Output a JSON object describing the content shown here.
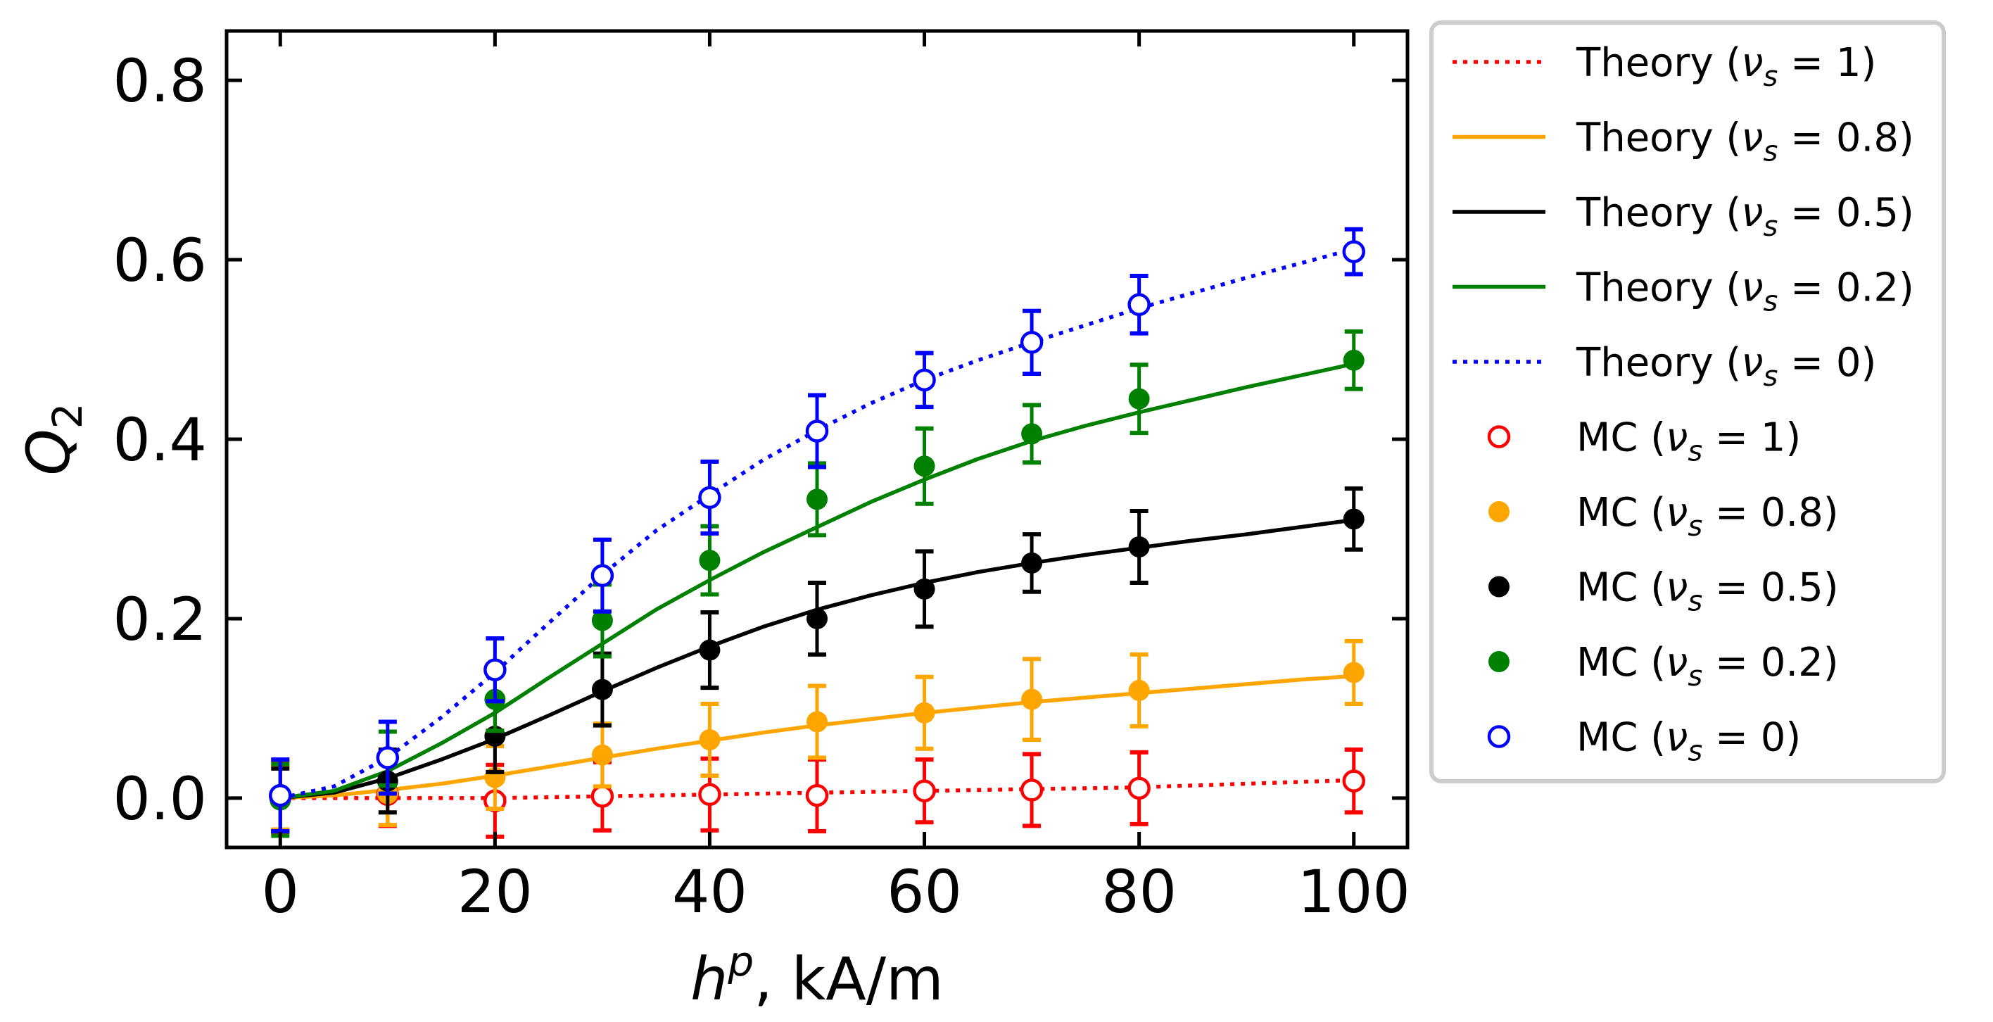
{
  "chart_data": {
    "type": "scatter",
    "xlabel": "h^p, kA/m",
    "xlabel_main": "h",
    "xlabel_sup": "p",
    "xlabel_rest": ", kA/m",
    "ylabel": "Q_2",
    "ylabel_main": "Q",
    "ylabel_sub": "2",
    "xlim": [
      -5,
      105
    ],
    "ylim": [
      -0.055,
      0.855
    ],
    "xticks": [
      0,
      20,
      40,
      60,
      80,
      100
    ],
    "xtick_labels": [
      "0",
      "20",
      "40",
      "60",
      "80",
      "100"
    ],
    "yticks": [
      0.0,
      0.2,
      0.4,
      0.6,
      0.8
    ],
    "ytick_labels": [
      "0.0",
      "0.2",
      "0.4",
      "0.6",
      "0.8"
    ],
    "grid": false,
    "legend_position": "outside-right",
    "theory_x": [
      0,
      5,
      10,
      15,
      20,
      25,
      30,
      35,
      40,
      45,
      50,
      55,
      60,
      65,
      70,
      75,
      80,
      85,
      90,
      95,
      100
    ],
    "theory": [
      {
        "name": "Theory (ν_s = 1)",
        "nu": "1",
        "color": "#ff0000",
        "style": "dotted",
        "y": [
          0.0,
          0.0,
          0.0,
          0.0,
          0.0,
          0.001,
          0.002,
          0.003,
          0.004,
          0.005,
          0.006,
          0.007,
          0.008,
          0.009,
          0.01,
          0.011,
          0.012,
          0.014,
          0.016,
          0.018,
          0.02
        ]
      },
      {
        "name": "Theory (ν_s = 0.8)",
        "nu": "0.8",
        "color": "#ffa500",
        "style": "solid",
        "y": [
          0.0,
          0.003,
          0.009,
          0.016,
          0.025,
          0.035,
          0.045,
          0.055,
          0.064,
          0.073,
          0.081,
          0.088,
          0.095,
          0.101,
          0.107,
          0.112,
          0.117,
          0.122,
          0.127,
          0.132,
          0.136
        ]
      },
      {
        "name": "Theory (ν_s = 0.5)",
        "nu": "0.5",
        "color": "#000000",
        "style": "solid",
        "y": [
          0.0,
          0.006,
          0.022,
          0.043,
          0.066,
          0.092,
          0.119,
          0.145,
          0.169,
          0.191,
          0.21,
          0.226,
          0.24,
          0.252,
          0.262,
          0.271,
          0.279,
          0.287,
          0.294,
          0.302,
          0.31
        ]
      },
      {
        "name": "Theory (ν_s = 0.2)",
        "nu": "0.2",
        "color": "#008000",
        "style": "solid",
        "y": [
          0.0,
          0.008,
          0.03,
          0.061,
          0.095,
          0.134,
          0.172,
          0.21,
          0.243,
          0.274,
          0.302,
          0.33,
          0.355,
          0.378,
          0.398,
          0.415,
          0.43,
          0.444,
          0.458,
          0.471,
          0.484
        ]
      },
      {
        "name": "Theory (ν_s = 0)",
        "nu": "0",
        "color": "#0000ff",
        "style": "dotted",
        "y": [
          0.0,
          0.013,
          0.045,
          0.09,
          0.14,
          0.195,
          0.249,
          0.298,
          0.338,
          0.377,
          0.41,
          0.44,
          0.466,
          0.488,
          0.508,
          0.527,
          0.546,
          0.563,
          0.58,
          0.596,
          0.612
        ]
      }
    ],
    "mc": [
      {
        "name": "MC (ν_s = 1)",
        "nu": "1",
        "color": "#ff0000",
        "filled": false,
        "x": [
          0,
          10,
          20,
          30,
          40,
          50,
          60,
          70,
          80,
          100
        ],
        "y": [
          0.002,
          0.004,
          -0.003,
          0.002,
          0.004,
          0.003,
          0.008,
          0.009,
          0.011,
          0.019
        ],
        "err": [
          0.04,
          0.035,
          0.04,
          0.038,
          0.04,
          0.04,
          0.035,
          0.04,
          0.04,
          0.035
        ]
      },
      {
        "name": "MC (ν_s = 0.8)",
        "nu": "0.8",
        "color": "#ffa500",
        "filled": true,
        "x": [
          0,
          10,
          20,
          30,
          40,
          50,
          60,
          70,
          80,
          100
        ],
        "y": [
          0.0,
          0.005,
          0.023,
          0.048,
          0.065,
          0.085,
          0.095,
          0.11,
          0.12,
          0.14
        ],
        "err": [
          0.035,
          0.035,
          0.035,
          0.035,
          0.04,
          0.04,
          0.04,
          0.045,
          0.04,
          0.035
        ]
      },
      {
        "name": "MC (ν_s = 0.5)",
        "nu": "0.5",
        "color": "#000000",
        "filled": true,
        "x": [
          0,
          10,
          20,
          30,
          40,
          50,
          60,
          70,
          80,
          100
        ],
        "y": [
          -0.002,
          0.019,
          0.069,
          0.121,
          0.165,
          0.2,
          0.233,
          0.262,
          0.28,
          0.311
        ],
        "err": [
          0.035,
          0.035,
          0.04,
          0.04,
          0.042,
          0.04,
          0.042,
          0.032,
          0.04,
          0.034
        ]
      },
      {
        "name": "MC (ν_s = 0.2)",
        "nu": "0.2",
        "color": "#008000",
        "filled": true,
        "x": [
          0,
          10,
          20,
          30,
          40,
          50,
          60,
          70,
          80,
          100
        ],
        "y": [
          -0.002,
          0.044,
          0.11,
          0.198,
          0.265,
          0.333,
          0.37,
          0.406,
          0.445,
          0.488
        ],
        "err": [
          0.04,
          0.03,
          0.035,
          0.04,
          0.038,
          0.04,
          0.042,
          0.032,
          0.038,
          0.032
        ]
      },
      {
        "name": "MC (ν_s = 0)",
        "nu": "0",
        "color": "#0000ff",
        "filled": false,
        "x": [
          0,
          10,
          20,
          30,
          40,
          50,
          60,
          70,
          80,
          100
        ],
        "y": [
          0.003,
          0.045,
          0.143,
          0.248,
          0.335,
          0.409,
          0.466,
          0.508,
          0.55,
          0.609
        ],
        "err": [
          0.04,
          0.04,
          0.035,
          0.04,
          0.04,
          0.04,
          0.03,
          0.035,
          0.032,
          0.025
        ]
      }
    ]
  }
}
